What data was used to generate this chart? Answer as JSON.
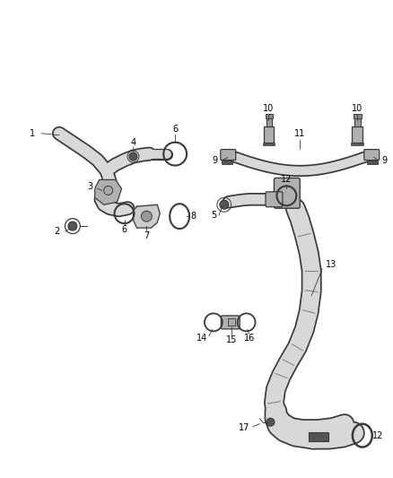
{
  "bg_color": "#ffffff",
  "line_color": "#3a3a3a",
  "fig_width": 4.38,
  "fig_height": 5.33,
  "dpi": 100,
  "tube_fill": "#d8d8d8",
  "tube_edge": "#3a3a3a",
  "fitting_fill": "#b0b0b0",
  "dark_fill": "#555555"
}
